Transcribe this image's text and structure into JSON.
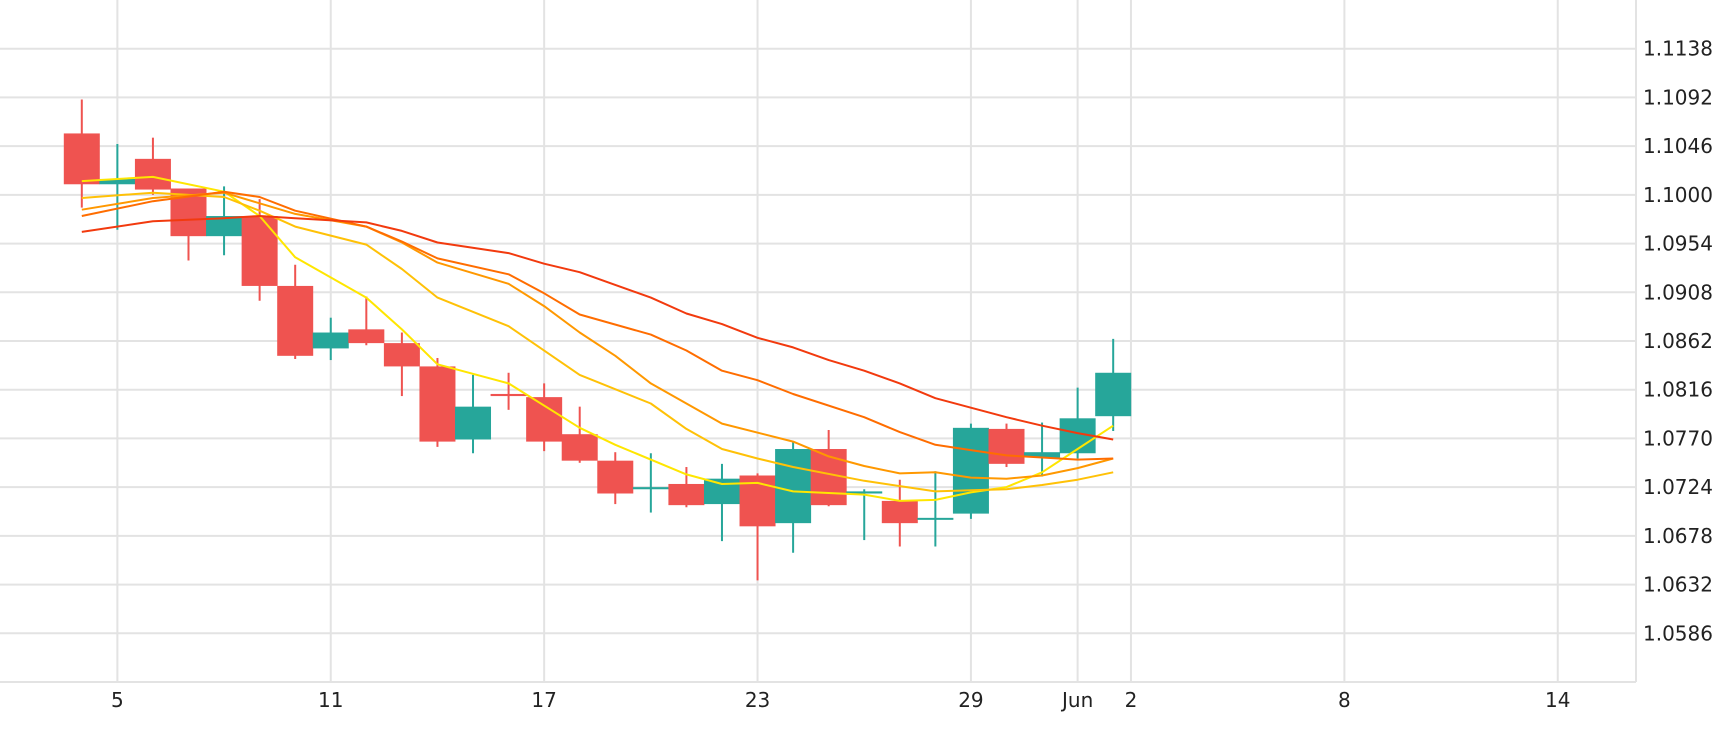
{
  "chart_data": {
    "type": "candlestick",
    "title": "",
    "xlabel": "",
    "ylabel": "",
    "x_ticks": [
      {
        "label": "5",
        "day": 1
      },
      {
        "label": "11",
        "day": 7
      },
      {
        "label": "17",
        "day": 13
      },
      {
        "label": "23",
        "day": 19
      },
      {
        "label": "29",
        "day": 25
      },
      {
        "label": "Jun",
        "day": 28
      },
      {
        "label": "2",
        "day": 29.5
      },
      {
        "label": "8",
        "day": 35.5
      },
      {
        "label": "14",
        "day": 41.5
      }
    ],
    "y_ticks": [
      "1.1138",
      "1.1092",
      "1.1046",
      "1.1000",
      "1.0954",
      "1.0908",
      "1.0862",
      "1.0816",
      "1.0770",
      "1.0724",
      "1.0678",
      "1.0632",
      "1.0586"
    ],
    "ylim": [
      1.054,
      1.1184
    ],
    "xlim": [
      -2.3,
      43.7
    ],
    "grid": true,
    "up_color": "#26a69a",
    "down_color": "#ef5350",
    "candles": [
      {
        "day": 0,
        "open": 1.1058,
        "high": 1.109,
        "low": 1.0988,
        "close": 1.101
      },
      {
        "day": 1,
        "open": 1.101,
        "high": 1.1048,
        "low": 1.0967,
        "close": 1.1015
      },
      {
        "day": 2,
        "open": 1.1034,
        "high": 1.1054,
        "low": 1.1,
        "close": 1.1005
      },
      {
        "day": 3,
        "open": 1.1006,
        "high": 1.1006,
        "low": 1.0938,
        "close": 1.0961
      },
      {
        "day": 4,
        "open": 1.0961,
        "high": 1.1008,
        "low": 1.0943,
        "close": 1.098
      },
      {
        "day": 5,
        "open": 1.098,
        "high": 1.0996,
        "low": 1.09,
        "close": 1.0914
      },
      {
        "day": 6,
        "open": 1.0914,
        "high": 1.0934,
        "low": 1.0845,
        "close": 1.0848
      },
      {
        "day": 7,
        "open": 1.0855,
        "high": 1.0884,
        "low": 1.0844,
        "close": 1.087
      },
      {
        "day": 8,
        "open": 1.0873,
        "high": 1.0904,
        "low": 1.0858,
        "close": 1.086
      },
      {
        "day": 9,
        "open": 1.086,
        "high": 1.087,
        "low": 1.081,
        "close": 1.0838
      },
      {
        "day": 10,
        "open": 1.0838,
        "high": 1.0846,
        "low": 1.0762,
        "close": 1.0767
      },
      {
        "day": 11,
        "open": 1.0769,
        "high": 1.083,
        "low": 1.0756,
        "close": 1.08
      },
      {
        "day": 12,
        "open": 1.0812,
        "high": 1.0832,
        "low": 1.0797,
        "close": 1.081
      },
      {
        "day": 13,
        "open": 1.0809,
        "high": 1.0822,
        "low": 1.0758,
        "close": 1.0767
      },
      {
        "day": 14,
        "open": 1.0774,
        "high": 1.08,
        "low": 1.0747,
        "close": 1.0749
      },
      {
        "day": 15,
        "open": 1.0749,
        "high": 1.0757,
        "low": 1.0708,
        "close": 1.0718
      },
      {
        "day": 16,
        "open": 1.0722,
        "high": 1.0756,
        "low": 1.07,
        "close": 1.0724
      },
      {
        "day": 17,
        "open": 1.0727,
        "high": 1.0743,
        "low": 1.0705,
        "close": 1.0707
      },
      {
        "day": 18,
        "open": 1.0708,
        "high": 1.0746,
        "low": 1.0673,
        "close": 1.0732
      },
      {
        "day": 19,
        "open": 1.0735,
        "high": 1.0737,
        "low": 1.0636,
        "close": 1.0687
      },
      {
        "day": 20,
        "open": 1.069,
        "high": 1.0767,
        "low": 1.0662,
        "close": 1.076
      },
      {
        "day": 21,
        "open": 1.076,
        "high": 1.0778,
        "low": 1.0706,
        "close": 1.0707
      },
      {
        "day": 22,
        "open": 1.0718,
        "high": 1.0722,
        "low": 1.0674,
        "close": 1.072
      },
      {
        "day": 23,
        "open": 1.0711,
        "high": 1.0731,
        "low": 1.0668,
        "close": 1.069
      },
      {
        "day": 24,
        "open": 1.0694,
        "high": 1.0739,
        "low": 1.0668,
        "close": 1.0695
      },
      {
        "day": 25,
        "open": 1.0699,
        "high": 1.0784,
        "low": 1.0694,
        "close": 1.078
      },
      {
        "day": 26,
        "open": 1.0779,
        "high": 1.0784,
        "low": 1.0743,
        "close": 1.0746
      },
      {
        "day": 27,
        "open": 1.0752,
        "high": 1.0785,
        "low": 1.0734,
        "close": 1.0757
      },
      {
        "day": 28,
        "open": 1.0756,
        "high": 1.0818,
        "low": 1.0751,
        "close": 1.0789
      },
      {
        "day": 29,
        "open": 1.0791,
        "high": 1.0864,
        "low": 1.0777,
        "close": 1.0832
      }
    ],
    "series": [
      {
        "color": "#ffe600",
        "points": [
          [
            0,
            1.1013
          ],
          [
            2,
            1.1017
          ],
          [
            4,
            1.1003
          ],
          [
            5,
            1.098
          ],
          [
            6,
            1.0941
          ],
          [
            8,
            1.0903
          ],
          [
            9,
            1.0873
          ],
          [
            10,
            1.084
          ],
          [
            12,
            1.0822
          ],
          [
            14,
            1.078
          ],
          [
            15,
            1.0764
          ],
          [
            17,
            1.0736
          ],
          [
            18,
            1.0727
          ],
          [
            19,
            1.0728
          ],
          [
            20,
            1.072
          ],
          [
            22,
            1.0717
          ],
          [
            23,
            1.0711
          ],
          [
            24,
            1.0712
          ],
          [
            25,
            1.0719
          ],
          [
            26,
            1.0724
          ],
          [
            27,
            1.0738
          ],
          [
            28,
            1.076
          ],
          [
            29,
            1.0782
          ]
        ]
      },
      {
        "color": "#ffc107",
        "points": [
          [
            0,
            1.0997
          ],
          [
            2,
            1.1002
          ],
          [
            4,
            1.0998
          ],
          [
            5,
            1.0985
          ],
          [
            6,
            1.097
          ],
          [
            8,
            1.0953
          ],
          [
            9,
            1.093
          ],
          [
            10,
            1.0903
          ],
          [
            12,
            1.0876
          ],
          [
            14,
            1.083
          ],
          [
            16,
            1.0803
          ],
          [
            17,
            1.0779
          ],
          [
            18,
            1.076
          ],
          [
            19,
            1.0751
          ],
          [
            20,
            1.0743
          ],
          [
            22,
            1.073
          ],
          [
            24,
            1.072
          ],
          [
            25,
            1.0721
          ],
          [
            26,
            1.0722
          ],
          [
            27,
            1.0726
          ],
          [
            28,
            1.0731
          ],
          [
            29,
            1.0738
          ]
        ]
      },
      {
        "color": "#ff9800",
        "points": [
          [
            0,
            1.0986
          ],
          [
            2,
            1.0997
          ],
          [
            4,
            1.1002
          ],
          [
            5,
            1.0992
          ],
          [
            6,
            1.0982
          ],
          [
            8,
            1.097
          ],
          [
            9,
            1.0955
          ],
          [
            10,
            1.0936
          ],
          [
            12,
            1.0916
          ],
          [
            13,
            1.0895
          ],
          [
            14,
            1.087
          ],
          [
            15,
            1.0848
          ],
          [
            16,
            1.0822
          ],
          [
            17,
            1.0803
          ],
          [
            18,
            1.0784
          ],
          [
            20,
            1.0767
          ],
          [
            21,
            1.0753
          ],
          [
            22,
            1.0744
          ],
          [
            23,
            1.0737
          ],
          [
            24,
            1.0738
          ],
          [
            25,
            1.0733
          ],
          [
            26,
            1.0732
          ],
          [
            27,
            1.0735
          ],
          [
            28,
            1.0742
          ],
          [
            29,
            1.0751
          ]
        ]
      },
      {
        "color": "#ff6d00",
        "points": [
          [
            0,
            1.098
          ],
          [
            2,
            1.0994
          ],
          [
            4,
            1.1003
          ],
          [
            5,
            1.0998
          ],
          [
            6,
            1.0985
          ],
          [
            8,
            1.097
          ],
          [
            9,
            1.0956
          ],
          [
            10,
            1.094
          ],
          [
            12,
            1.0925
          ],
          [
            13,
            1.0907
          ],
          [
            14,
            1.0887
          ],
          [
            16,
            1.0868
          ],
          [
            17,
            1.0853
          ],
          [
            18,
            1.0834
          ],
          [
            19,
            1.0825
          ],
          [
            20,
            1.0812
          ],
          [
            22,
            1.079
          ],
          [
            23,
            1.0776
          ],
          [
            24,
            1.0764
          ],
          [
            25,
            1.0759
          ],
          [
            26,
            1.0754
          ],
          [
            27,
            1.0752
          ],
          [
            28,
            1.075
          ],
          [
            29,
            1.0751
          ]
        ]
      },
      {
        "color": "#f23a0e",
        "points": [
          [
            0,
            1.0965
          ],
          [
            2,
            1.0975
          ],
          [
            4,
            1.0978
          ],
          [
            5,
            1.098
          ],
          [
            6,
            1.0978
          ],
          [
            8,
            1.0974
          ],
          [
            9,
            1.0966
          ],
          [
            10,
            1.0955
          ],
          [
            12,
            1.0945
          ],
          [
            13,
            1.0935
          ],
          [
            14,
            1.0927
          ],
          [
            15,
            1.0915
          ],
          [
            16,
            1.0903
          ],
          [
            17,
            1.0888
          ],
          [
            18,
            1.0878
          ],
          [
            19,
            1.0865
          ],
          [
            20,
            1.0856
          ],
          [
            21,
            1.0844
          ],
          [
            22,
            1.0834
          ],
          [
            23,
            1.0822
          ],
          [
            24,
            1.0808
          ],
          [
            25,
            1.0799
          ],
          [
            26,
            1.079
          ],
          [
            27,
            1.0782
          ],
          [
            28,
            1.0775
          ],
          [
            29,
            1.0769
          ]
        ]
      }
    ]
  }
}
